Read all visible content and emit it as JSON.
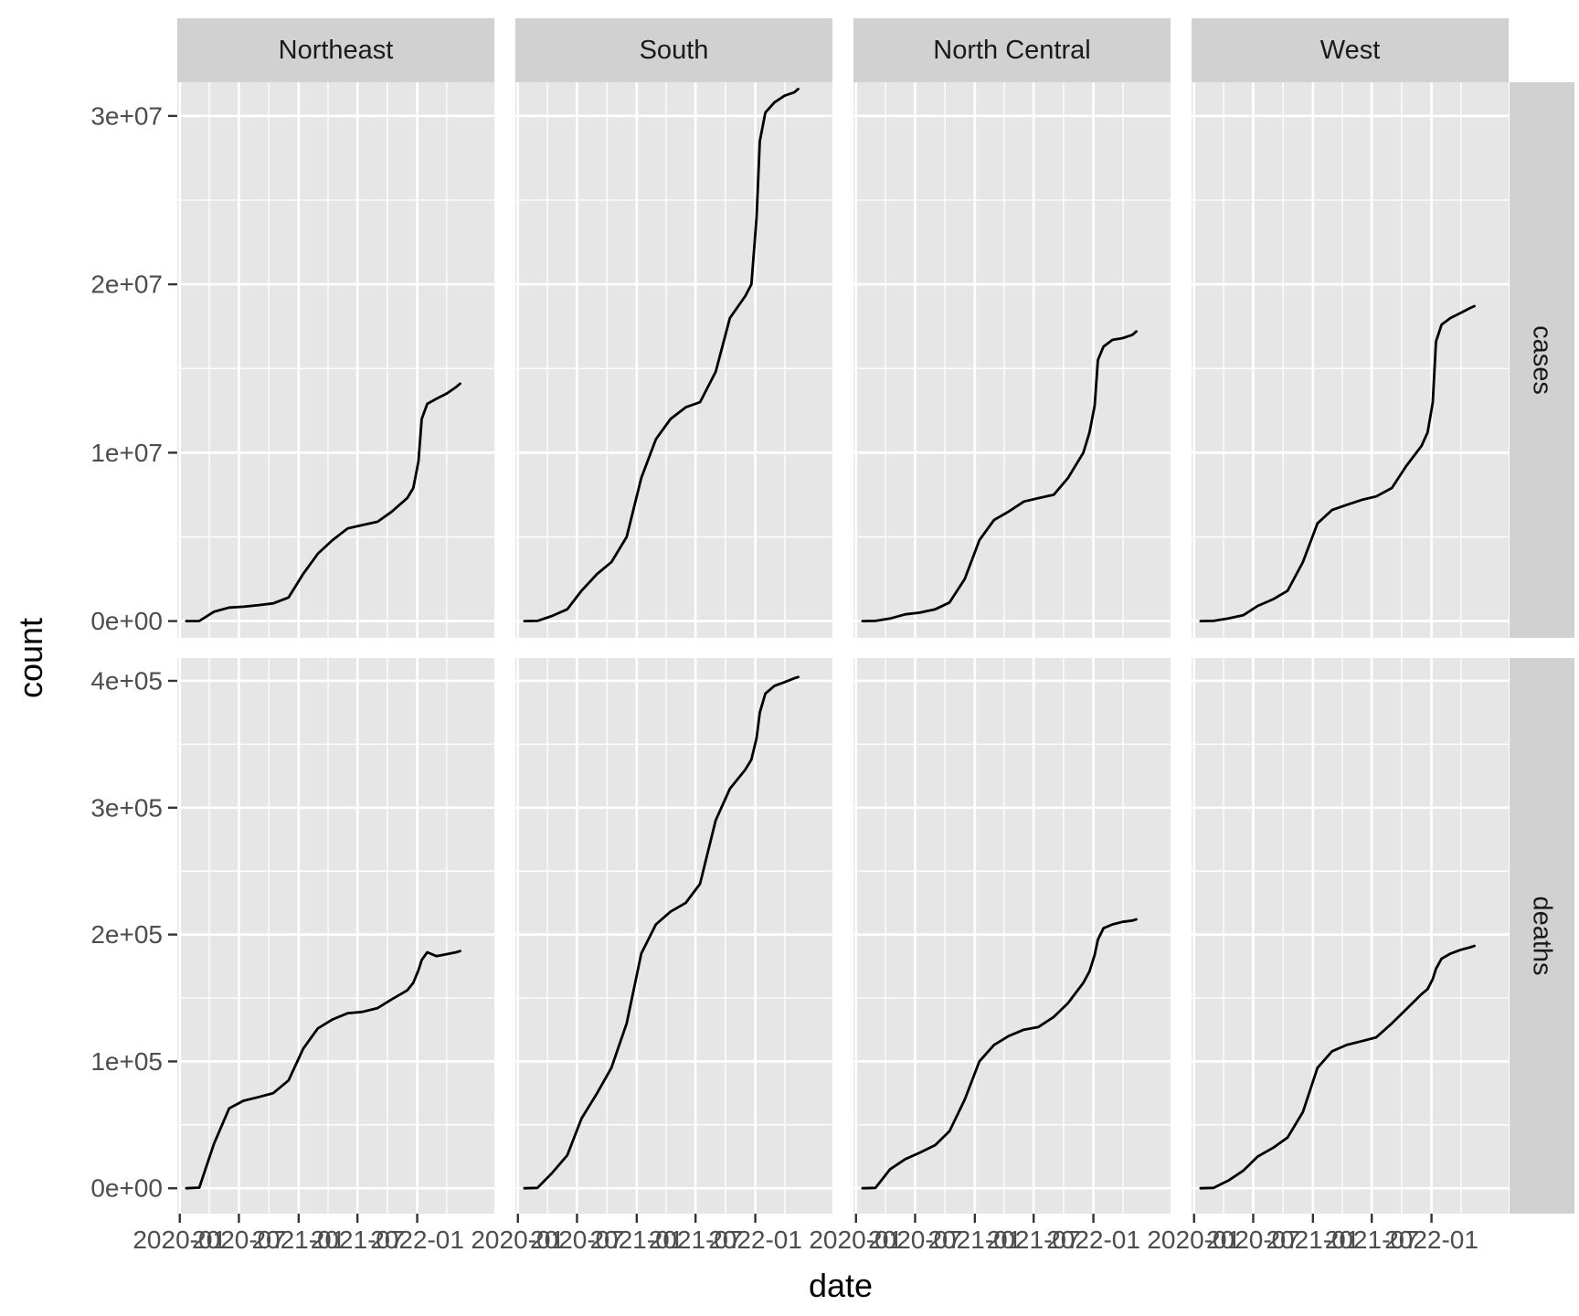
{
  "chart_data": {
    "type": "line",
    "facet_layout": "grid",
    "xlabel": "date",
    "ylabel": "count",
    "x_tick_labels": [
      "2020-01",
      "2020-07",
      "2021-01",
      "2021-07",
      "2022-01"
    ],
    "x_range": [
      "2020-01",
      "2022-07"
    ],
    "columns": [
      "Northeast",
      "South",
      "North Central",
      "West"
    ],
    "rows": [
      {
        "name": "cases",
        "ylim": [
          -1000000,
          32000000
        ],
        "y_ticks": [
          0,
          10000000,
          20000000,
          30000000
        ],
        "y_tick_labels": [
          "0e+00",
          "1e+07",
          "2e+07",
          "3e+07"
        ]
      },
      {
        "name": "deaths",
        "ylim": [
          -20000,
          418000
        ],
        "y_ticks": [
          0,
          100000,
          200000,
          300000,
          400000
        ],
        "y_tick_labels": [
          "0e+00",
          "1e+05",
          "2e+05",
          "3e+05",
          "4e+05"
        ]
      }
    ],
    "series_dates": [
      "2020-01-21",
      "2020-03-01",
      "2020-04-15",
      "2020-06-01",
      "2020-07-15",
      "2020-09-01",
      "2020-10-15",
      "2020-12-01",
      "2021-01-15",
      "2021-03-01",
      "2021-04-15",
      "2021-06-01",
      "2021-07-15",
      "2021-09-01",
      "2021-10-15",
      "2021-12-01",
      "2021-12-20",
      "2022-01-05",
      "2022-01-15",
      "2022-02-01",
      "2022-03-01",
      "2022-04-01",
      "2022-05-01",
      "2022-05-13"
    ],
    "panels": [
      {
        "row": "cases",
        "column": "Northeast",
        "values": [
          0,
          5000,
          550000,
          800000,
          850000,
          950000,
          1050000,
          1400000,
          2800000,
          4000000,
          4800000,
          5500000,
          5700000,
          5900000,
          6500000,
          7300000,
          7900000,
          9500000,
          12000000,
          12900000,
          13200000,
          13500000,
          13900000,
          14100000
        ]
      },
      {
        "row": "cases",
        "column": "South",
        "values": [
          0,
          10000,
          300000,
          700000,
          1800000,
          2800000,
          3500000,
          5000000,
          8500000,
          10800000,
          12000000,
          12700000,
          13000000,
          14800000,
          18000000,
          19300000,
          20000000,
          24000000,
          28500000,
          30200000,
          30800000,
          31200000,
          31400000,
          31600000
        ]
      },
      {
        "row": "cases",
        "column": "North Central",
        "values": [
          0,
          10000,
          150000,
          400000,
          500000,
          700000,
          1100000,
          2500000,
          4800000,
          6000000,
          6500000,
          7100000,
          7300000,
          7500000,
          8500000,
          10000000,
          11200000,
          12800000,
          15500000,
          16300000,
          16700000,
          16800000,
          17000000,
          17200000
        ]
      },
      {
        "row": "cases",
        "column": "West",
        "values": [
          0,
          10000,
          150000,
          350000,
          900000,
          1300000,
          1800000,
          3500000,
          5800000,
          6600000,
          6900000,
          7200000,
          7400000,
          7900000,
          9200000,
          10400000,
          11200000,
          13000000,
          16600000,
          17600000,
          18000000,
          18300000,
          18600000,
          18700000
        ]
      },
      {
        "row": "deaths",
        "column": "Northeast",
        "values": [
          0,
          500,
          35000,
          63000,
          69000,
          72000,
          75000,
          85000,
          110000,
          126000,
          133000,
          138000,
          139000,
          142000,
          149000,
          156000,
          162000,
          172000,
          180000,
          186000,
          183000,
          184500,
          186000,
          187000
        ]
      },
      {
        "row": "deaths",
        "column": "South",
        "values": [
          0,
          300,
          12000,
          26000,
          55000,
          75000,
          95000,
          130000,
          185000,
          208000,
          218000,
          225000,
          240000,
          290000,
          315000,
          330000,
          338000,
          355000,
          375000,
          390000,
          396000,
          399000,
          402000,
          403000
        ]
      },
      {
        "row": "deaths",
        "column": "North Central",
        "values": [
          0,
          300,
          15000,
          23000,
          28000,
          34000,
          45000,
          70000,
          100000,
          113000,
          120000,
          125000,
          127000,
          135000,
          146000,
          162000,
          171000,
          184000,
          196000,
          205000,
          208000,
          210000,
          211000,
          212000
        ]
      },
      {
        "row": "deaths",
        "column": "West",
        "values": [
          0,
          300,
          6000,
          14000,
          25000,
          32000,
          40000,
          60000,
          95000,
          108000,
          113000,
          116000,
          119000,
          130000,
          141000,
          153000,
          157000,
          165000,
          173000,
          181000,
          185000,
          188000,
          190000,
          191000
        ]
      }
    ],
    "legend": "none",
    "grid": true
  },
  "colors": {
    "panel_background": "#e6e6e6",
    "grid_major": "#ffffff",
    "strip_background": "#d1d1d1",
    "line": "#000000",
    "tick": "#333333"
  }
}
